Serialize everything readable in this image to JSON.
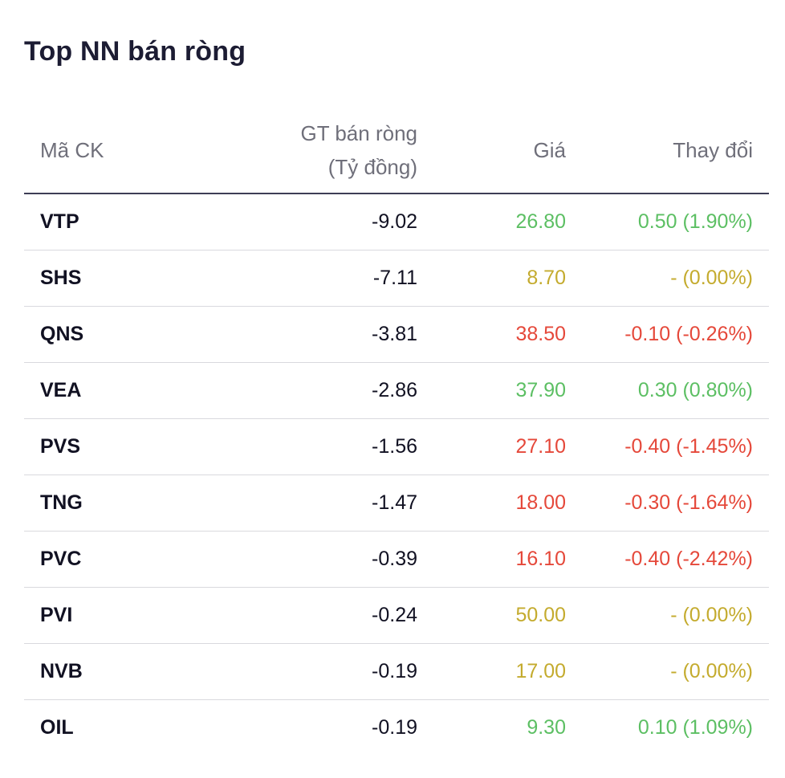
{
  "title": "Top NN bán ròng",
  "colors": {
    "up": "#5cbf63",
    "flat": "#c4ab2e",
    "down": "#e5483a"
  },
  "table": {
    "headers": {
      "code": "Mã CK",
      "value_line1": "GT bán ròng",
      "value_line2": "(Tỷ đồng)",
      "price": "Giá",
      "change": "Thay đổi"
    },
    "rows": [
      {
        "code": "VTP",
        "value": "-9.02",
        "price": "26.80",
        "change": "0.50 (1.90%)",
        "trend": "up"
      },
      {
        "code": "SHS",
        "value": "-7.11",
        "price": "8.70",
        "change": "- (0.00%)",
        "trend": "flat"
      },
      {
        "code": "QNS",
        "value": "-3.81",
        "price": "38.50",
        "change": "-0.10 (-0.26%)",
        "trend": "down"
      },
      {
        "code": "VEA",
        "value": "-2.86",
        "price": "37.90",
        "change": "0.30 (0.80%)",
        "trend": "up"
      },
      {
        "code": "PVS",
        "value": "-1.56",
        "price": "27.10",
        "change": "-0.40 (-1.45%)",
        "trend": "down"
      },
      {
        "code": "TNG",
        "value": "-1.47",
        "price": "18.00",
        "change": "-0.30 (-1.64%)",
        "trend": "down"
      },
      {
        "code": "PVC",
        "value": "-0.39",
        "price": "16.10",
        "change": "-0.40 (-2.42%)",
        "trend": "down"
      },
      {
        "code": "PVI",
        "value": "-0.24",
        "price": "50.00",
        "change": "- (0.00%)",
        "trend": "flat"
      },
      {
        "code": "NVB",
        "value": "-0.19",
        "price": "17.00",
        "change": "- (0.00%)",
        "trend": "flat"
      },
      {
        "code": "OIL",
        "value": "-0.19",
        "price": "9.30",
        "change": "0.10 (1.09%)",
        "trend": "up"
      }
    ]
  }
}
